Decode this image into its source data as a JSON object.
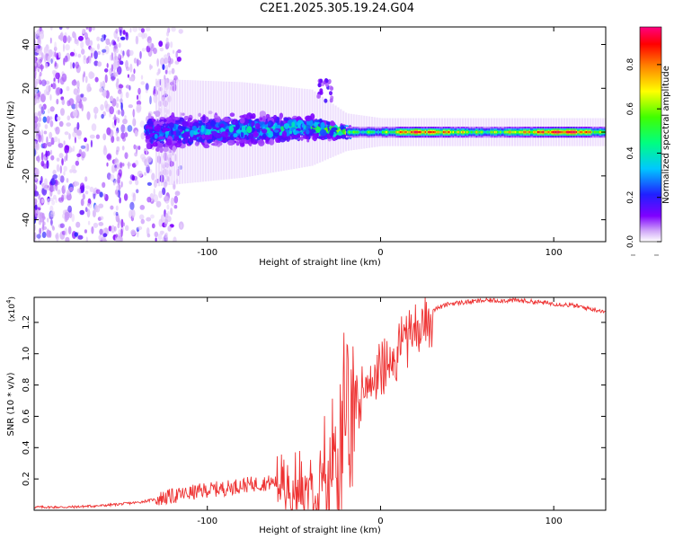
{
  "title": "C2E1.2025.305.19.24.G04",
  "chart_data": [
    {
      "type": "heatmap",
      "title": "C2E1.2025.305.19.24.G04",
      "xlabel": "Height of straight line (km)",
      "ylabel": "Frequency (Hz)",
      "xlim": [
        -200,
        130
      ],
      "ylim": [
        -50,
        48
      ],
      "xticks": [
        -100,
        0,
        100
      ],
      "xtick_labels": [
        "-100",
        "0",
        "100"
      ],
      "yticks": [
        -40,
        -20,
        0,
        20,
        40
      ],
      "ytick_labels": [
        "-40",
        "-20",
        "0",
        "20",
        "40"
      ],
      "colorbar": {
        "label": "Normalized spectral amplitude",
        "range": [
          0,
          0.97
        ],
        "ticks": [
          0.0,
          0.2,
          0.4,
          0.6,
          0.8
        ],
        "tick_labels": [
          "0.0",
          "0.2",
          "0.4",
          "0.6",
          "0.8"
        ],
        "colormap": [
          "#ffffff",
          "#d0a8f8",
          "#7f00ff",
          "#2020ff",
          "#00c8ff",
          "#00ff80",
          "#40ff00",
          "#ffff00",
          "#ff8000",
          "#ff0000",
          "#ff0080"
        ]
      },
      "description_points": [
        {
          "x": -200,
          "noise": "broadband",
          "amplitude": 0.15
        },
        {
          "x": -150,
          "noise": "broadband",
          "amplitude": 0.12
        },
        {
          "x": -120,
          "center_hz": 0,
          "spread_hz": 10,
          "amplitude": 0.3
        },
        {
          "x": -80,
          "center_hz": 1,
          "spread_hz": 9,
          "amplitude": 0.35
        },
        {
          "x": -40,
          "center_hz": 2,
          "spread_hz": 7,
          "amplitude": 0.4
        },
        {
          "x": -20,
          "center_hz": 0,
          "spread_hz": 3,
          "amplitude": 0.55
        },
        {
          "x": 0,
          "center_hz": 0,
          "spread_hz": 2,
          "amplitude": 0.5
        },
        {
          "x": 20,
          "center_hz": 0,
          "spread_hz": 2,
          "amplitude": 0.9
        },
        {
          "x": 60,
          "center_hz": 0,
          "spread_hz": 2,
          "amplitude": 0.55
        },
        {
          "x": 110,
          "center_hz": 0,
          "spread_hz": 2,
          "amplitude": 0.95
        },
        {
          "x": 130,
          "center_hz": 0,
          "spread_hz": 2,
          "amplitude": 0.5
        }
      ]
    },
    {
      "type": "line",
      "xlabel": "Height of straight line (km)",
      "ylabel": "SNR (10 * v/v)",
      "yscale_label": "(x10",
      "yscale_exponent": "4",
      "yscale_label_close": ")",
      "xlim": [
        -200,
        130
      ],
      "ylim": [
        0,
        1.36
      ],
      "xticks": [
        -100,
        0,
        100
      ],
      "xtick_labels": [
        "-100",
        "0",
        "100"
      ],
      "yticks": [
        0.2,
        0.4,
        0.6,
        0.8,
        1.0,
        1.2
      ],
      "ytick_labels": [
        "0.2",
        "0.4",
        "0.6",
        "0.8",
        "1.0",
        "1.2"
      ],
      "color": "#ee3333",
      "series": [
        {
          "name": "SNR",
          "x": [
            -200,
            -180,
            -160,
            -140,
            -130,
            -120,
            -110,
            -100,
            -90,
            -80,
            -70,
            -60,
            -50,
            -40,
            -35,
            -30,
            -25,
            -20,
            -18,
            -15,
            -10,
            -5,
            0,
            5,
            10,
            15,
            20,
            25,
            30,
            40,
            50,
            60,
            70,
            80,
            90,
            100,
            110,
            120,
            130
          ],
          "values": [
            0.02,
            0.02,
            0.03,
            0.05,
            0.07,
            0.09,
            0.11,
            0.13,
            0.14,
            0.16,
            0.17,
            0.18,
            0.2,
            0.24,
            0.35,
            0.45,
            0.6,
            0.75,
            0.55,
            0.7,
            0.82,
            0.88,
            0.95,
            1.0,
            1.07,
            1.15,
            1.2,
            1.25,
            1.28,
            1.32,
            1.33,
            1.34,
            1.34,
            1.34,
            1.33,
            1.32,
            1.31,
            1.29,
            1.27
          ]
        }
      ]
    }
  ]
}
